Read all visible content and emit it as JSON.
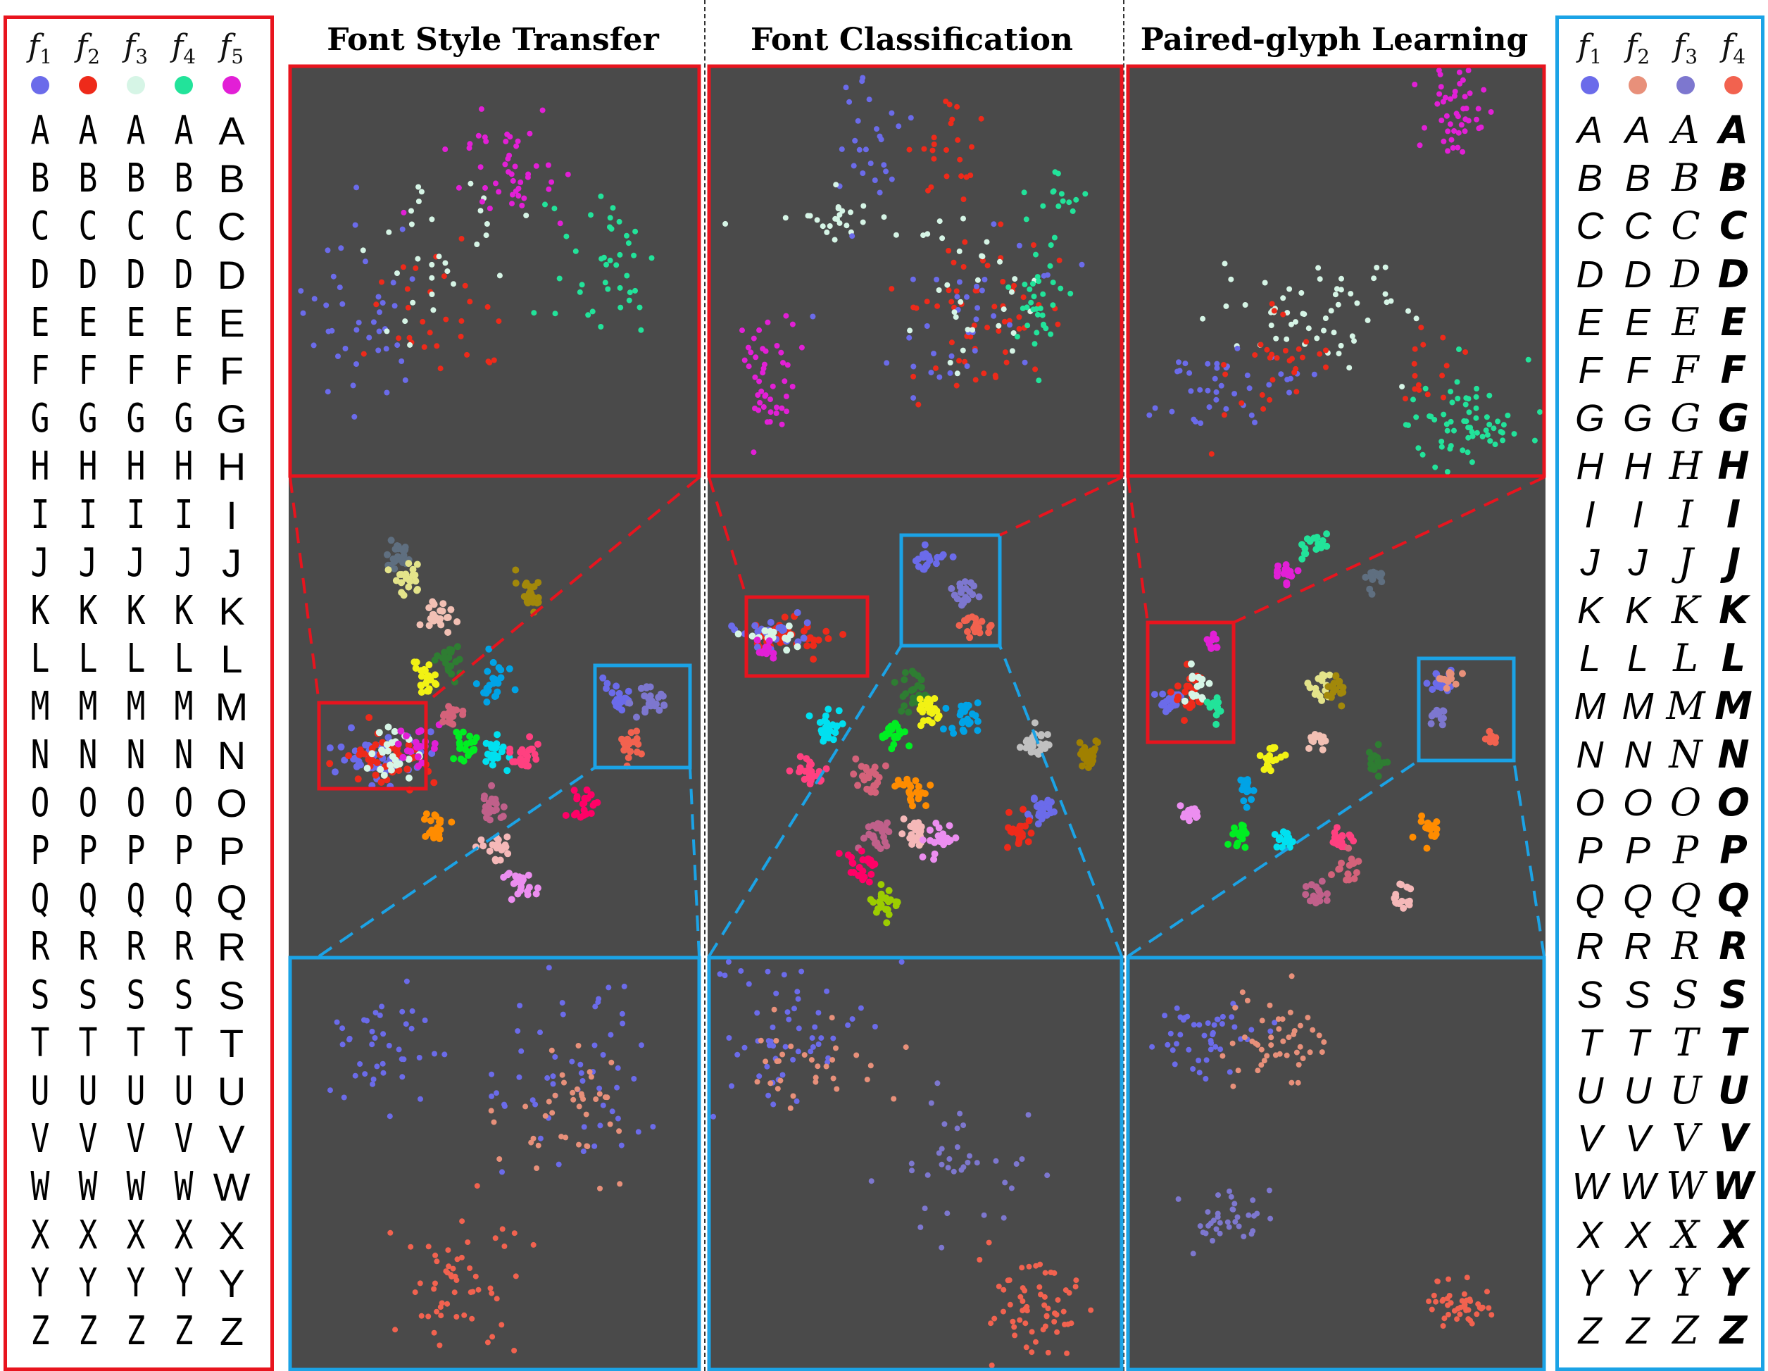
{
  "column_titles": [
    "Font Style Transfer",
    "Font Classification",
    "Paired-glyph Learning"
  ],
  "left_legend": {
    "fonts": [
      {
        "symbol": "f",
        "sub": "1",
        "color": "#6b6bea"
      },
      {
        "symbol": "f",
        "sub": "2",
        "color": "#ee2a1a"
      },
      {
        "symbol": "f",
        "sub": "3",
        "color": "#d6f5e6"
      },
      {
        "symbol": "f",
        "sub": "4",
        "color": "#22e39a"
      },
      {
        "symbol": "f",
        "sub": "5",
        "color": "#e21fd6"
      }
    ]
  },
  "right_legend": {
    "fonts": [
      {
        "symbol": "f",
        "sub": "1",
        "color": "#6b6bea"
      },
      {
        "symbol": "f",
        "sub": "2",
        "color": "#e8907a"
      },
      {
        "symbol": "f",
        "sub": "3",
        "color": "#7d77cf"
      },
      {
        "symbol": "f",
        "sub": "4",
        "color": "#f2624f"
      }
    ]
  },
  "letters": [
    "A",
    "B",
    "C",
    "D",
    "E",
    "F",
    "G",
    "H",
    "I",
    "J",
    "K",
    "L",
    "M",
    "N",
    "O",
    "P",
    "Q",
    "R",
    "S",
    "T",
    "U",
    "V",
    "W",
    "X",
    "Y",
    "Z"
  ],
  "colors": {
    "red_frame": "#e8141e",
    "blue_frame": "#1ba3e6",
    "panel_bg": "#4a4a4a"
  }
}
